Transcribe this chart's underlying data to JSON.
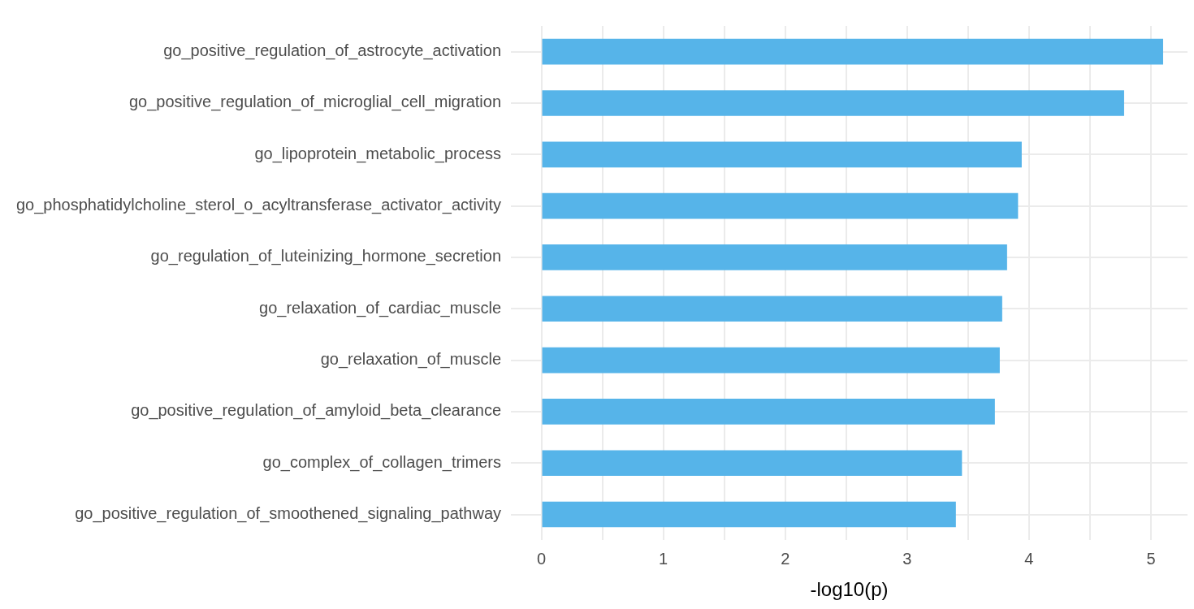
{
  "chart_data": {
    "type": "bar",
    "orientation": "horizontal",
    "xlabel": "-log10(p)",
    "categories": [
      "go_positive_regulation_of_astrocyte_activation",
      "go_positive_regulation_of_microglial_cell_migration",
      "go_lipoprotein_metabolic_process",
      "go_phosphatidylcholine_sterol_o_acyltransferase_activator_activity",
      "go_regulation_of_luteinizing_hormone_secretion",
      "go_relaxation_of_cardiac_muscle",
      "go_relaxation_of_muscle",
      "go_positive_regulation_of_amyloid_beta_clearance",
      "go_complex_of_collagen_trimers",
      "go_positive_regulation_of_smoothened_signaling_pathway"
    ],
    "values": [
      5.1,
      4.78,
      3.94,
      3.91,
      3.82,
      3.78,
      3.76,
      3.72,
      3.45,
      3.4
    ],
    "color": "#56b4e9",
    "xlim": [
      -0.25,
      5.3
    ],
    "xticks": [
      0,
      {
        "value": 0.5,
        "label": null
      },
      1,
      {
        "value": 1.5,
        "label": null
      },
      2,
      {
        "value": 2.5,
        "label": null
      },
      3,
      {
        "value": 3.5,
        "label": null
      },
      4,
      {
        "value": 4.5,
        "label": null
      },
      5
    ],
    "grid": true
  }
}
